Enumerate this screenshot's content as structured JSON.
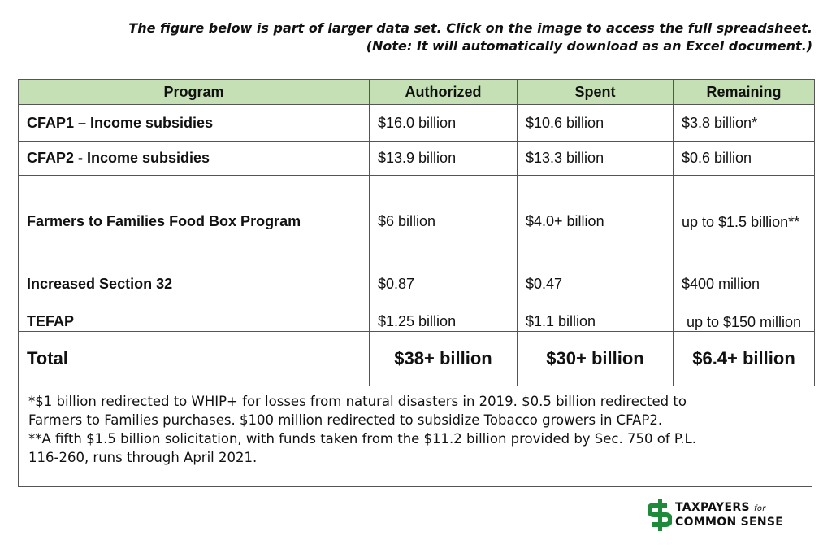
{
  "note": {
    "line1": "The figure below is part of larger data set. Click on the image to access the full spreadsheet.",
    "line2": "(Note: It will automatically download as an Excel document.)"
  },
  "table": {
    "headers": [
      "Program",
      "Authorized",
      "Spent",
      "Remaining"
    ],
    "rows": [
      {
        "program": "CFAP1 – Income subsidies",
        "authorized": "$16.0 billion",
        "spent": "$10.6 billion",
        "remaining": "$3.8 billion*"
      },
      {
        "program": "CFAP2 - Income subsidies",
        "authorized": "$13.9 billion",
        "spent": "$13.3 billion",
        "remaining": "$0.6 billion"
      },
      {
        "program": "Farmers to Families Food Box Program",
        "authorized": "$6 billion",
        "spent": "$4.0+ billion",
        "remaining": "up to $1.5 billion**"
      },
      {
        "program": "Increased Section 32",
        "authorized": "$0.87",
        "spent": "$0.47",
        "remaining": "$400 million"
      },
      {
        "program": "TEFAP",
        "authorized": "$1.25 billion",
        "spent": "$1.1 billion",
        "remaining": "up to $150 million"
      }
    ],
    "total": {
      "program": "Total",
      "authorized": "$38+ billion",
      "spent": "$30+ billion",
      "remaining": "$6.4+ billion"
    }
  },
  "footnotes": {
    "line1": "*$1 billion redirected to WHIP+ for losses from natural disasters in 2019. $0.5 billion redirected to",
    "line2": "Farmers to Families purchases. $100 million redirected to subsidize Tobacco growers in CFAP2.",
    "line3": "**A fifth $1.5 billion solicitation, with funds taken from the $11.2 billion provided by Sec. 750 of P.L.",
    "line4": "116-260, runs through April 2021."
  },
  "logo": {
    "line1": "TAXPAYERS",
    "for": "for",
    "line2": "COMMON SENSE",
    "color": "#1f8a3c"
  }
}
